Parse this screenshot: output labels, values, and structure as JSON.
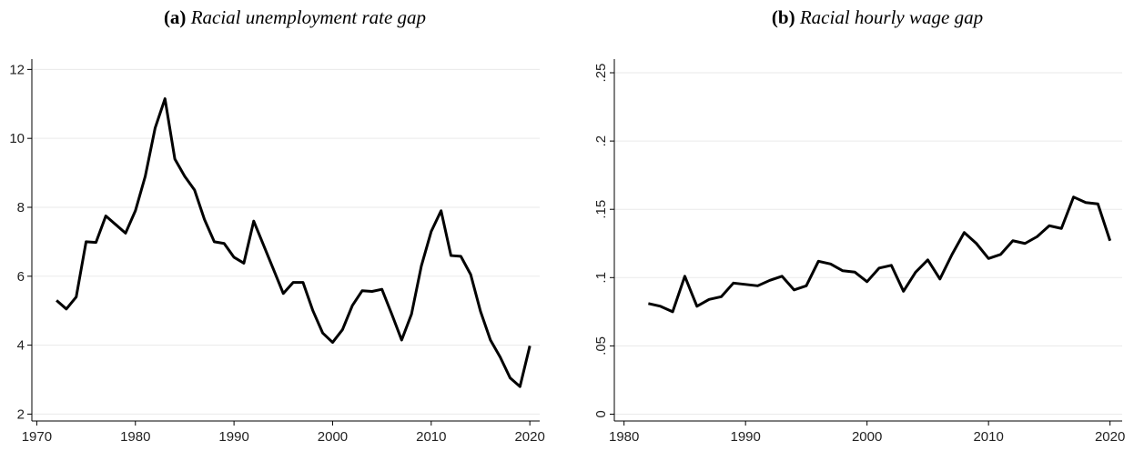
{
  "chart_data": [
    {
      "type": "line",
      "panel": "(a)",
      "title": "Racial unemployment rate gap",
      "x": [
        1972,
        1973,
        1974,
        1975,
        1976,
        1977,
        1978,
        1979,
        1980,
        1981,
        1982,
        1983,
        1984,
        1985,
        1986,
        1987,
        1988,
        1989,
        1990,
        1991,
        1992,
        1993,
        1994,
        1995,
        1996,
        1997,
        1998,
        1999,
        2000,
        2001,
        2002,
        2003,
        2004,
        2005,
        2006,
        2007,
        2008,
        2009,
        2010,
        2011,
        2012,
        2013,
        2014,
        2015,
        2016,
        2017,
        2018,
        2019,
        2020
      ],
      "values": [
        5.3,
        5.05,
        5.4,
        7.0,
        6.98,
        7.75,
        7.5,
        7.25,
        7.9,
        8.9,
        10.3,
        11.15,
        9.4,
        8.9,
        8.5,
        7.65,
        7.0,
        6.95,
        6.55,
        6.38,
        7.6,
        6.9,
        6.2,
        5.5,
        5.82,
        5.82,
        5.0,
        4.35,
        4.08,
        4.45,
        5.15,
        5.58,
        5.56,
        5.62,
        4.9,
        4.15,
        4.9,
        6.3,
        7.3,
        7.9,
        6.6,
        6.58,
        6.05,
        4.98,
        4.15,
        3.65,
        3.05,
        2.8,
        3.98
      ],
      "color": "#000000",
      "xlim": [
        1969.5,
        2021
      ],
      "xticks": [
        1970,
        1980,
        1990,
        2000,
        2010,
        2020
      ],
      "ylim": [
        1.8,
        12.3
      ],
      "yticks": [
        2,
        4,
        6,
        8,
        10,
        12
      ],
      "grid": true
    },
    {
      "type": "line",
      "panel": "(b)",
      "title": "Racial hourly wage gap",
      "x": [
        1982,
        1983,
        1984,
        1985,
        1986,
        1987,
        1988,
        1989,
        1990,
        1991,
        1992,
        1993,
        1994,
        1995,
        1996,
        1997,
        1998,
        1999,
        2000,
        2001,
        2002,
        2003,
        2004,
        2005,
        2006,
        2007,
        2008,
        2009,
        2010,
        2011,
        2012,
        2013,
        2014,
        2015,
        2016,
        2017,
        2018,
        2019,
        2020
      ],
      "values": [
        0.081,
        0.079,
        0.075,
        0.101,
        0.079,
        0.084,
        0.086,
        0.096,
        0.095,
        0.094,
        0.098,
        0.101,
        0.091,
        0.094,
        0.112,
        0.11,
        0.105,
        0.104,
        0.097,
        0.107,
        0.109,
        0.09,
        0.104,
        0.113,
        0.099,
        0.117,
        0.133,
        0.125,
        0.114,
        0.117,
        0.127,
        0.125,
        0.13,
        0.138,
        0.136,
        0.159,
        0.155,
        0.154,
        0.127
      ],
      "color": "#000000",
      "xlim": [
        1979.2,
        2021
      ],
      "xticks": [
        1980,
        1990,
        2000,
        2010,
        2020
      ],
      "ylim": [
        -0.005,
        0.26
      ],
      "yticks": [
        0,
        {
          "value": 0.05,
          "label": ".05"
        },
        {
          "value": 0.1,
          "label": ".1"
        },
        {
          "value": 0.15,
          "label": ".15"
        },
        {
          "value": 0.2,
          "label": ".2"
        },
        {
          "value": 0.25,
          "label": ".25"
        }
      ],
      "grid": true
    }
  ]
}
